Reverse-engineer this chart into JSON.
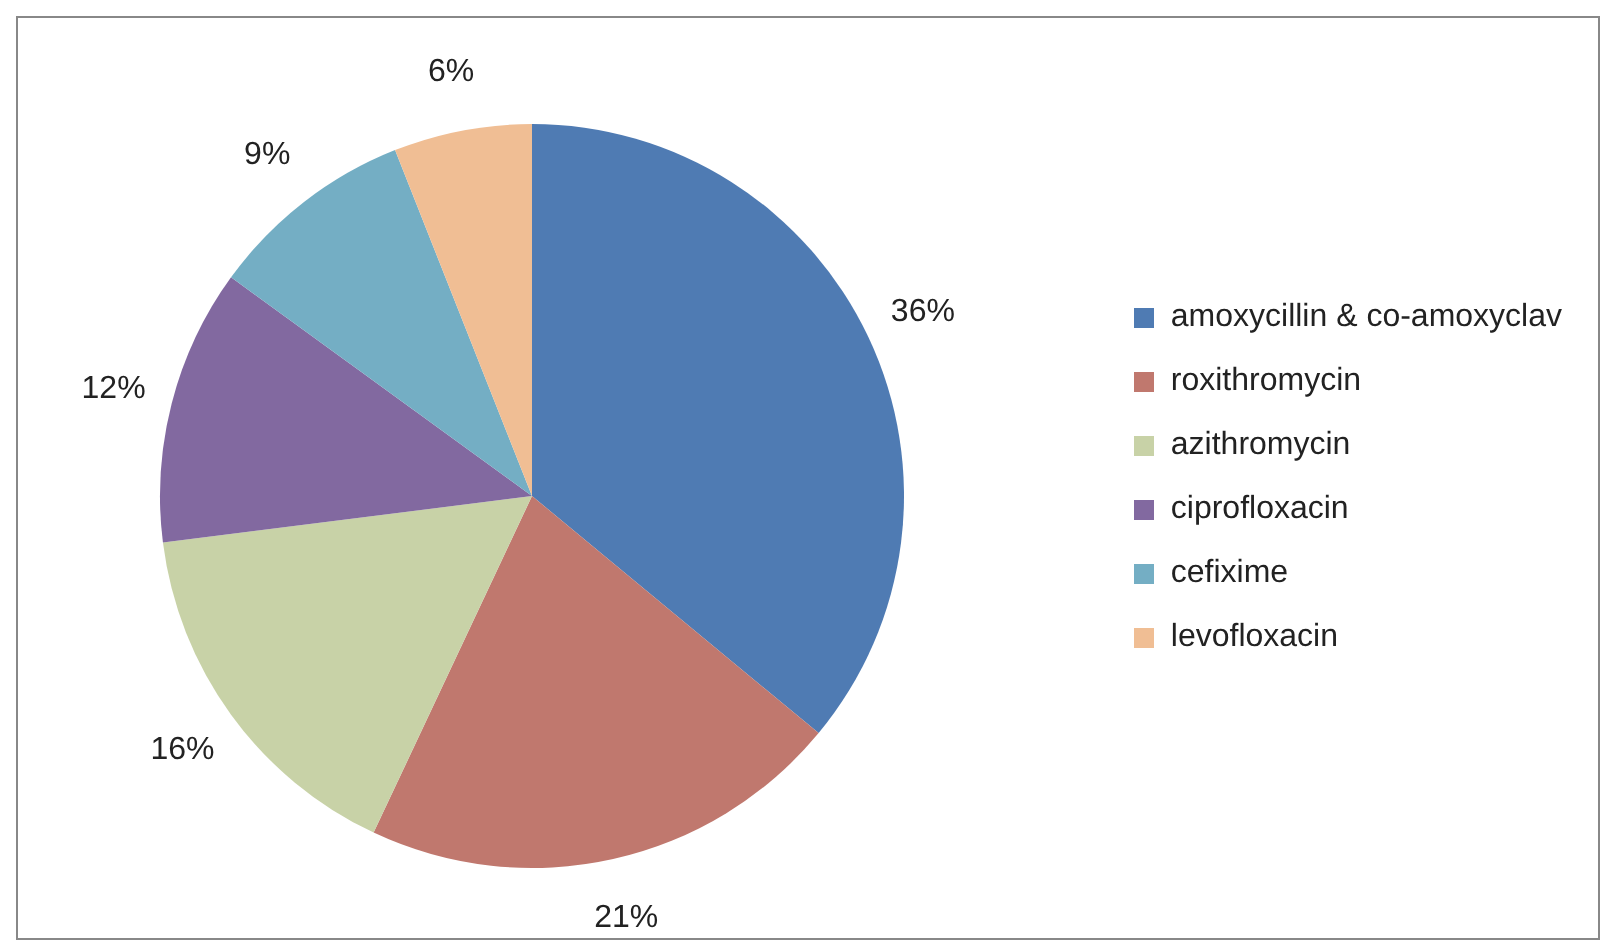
{
  "chart_data": {
    "type": "pie",
    "categories": [
      "amoxycillin & co-amoxyclav",
      "roxithromycin",
      "azithromycin",
      "ciprofloxacin",
      "cefixime",
      "levofloxacin"
    ],
    "values": [
      36,
      21,
      16,
      12,
      9,
      6
    ],
    "value_labels": [
      "36%",
      "21%",
      "16%",
      "12%",
      "9%",
      "6%"
    ],
    "colors": [
      "#4f7bb3",
      "#c0786e",
      "#c8d2a7",
      "#8269a0",
      "#74aec4",
      "#f0be94"
    ],
    "legend": "right"
  }
}
